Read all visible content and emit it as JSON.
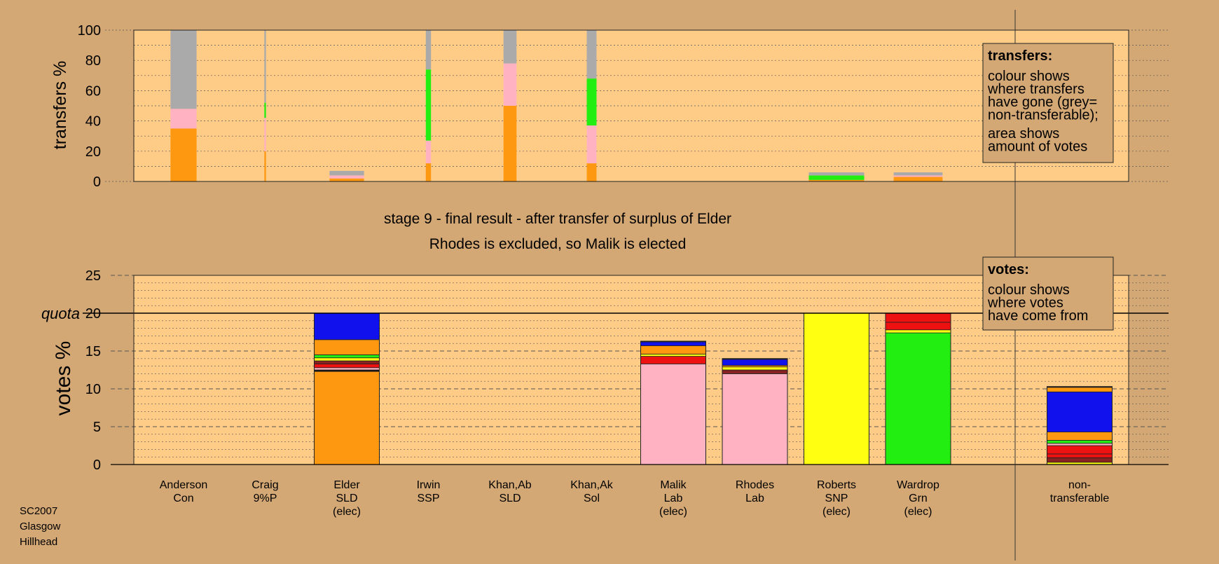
{
  "chart_data": [
    {
      "type": "bar",
      "ylabel": "transfers %",
      "ylim": [
        0,
        100
      ],
      "yticks": [
        0,
        20,
        40,
        60,
        80,
        100
      ],
      "grid": true,
      "note": {
        "title": "transfers:",
        "lines": [
          "colour shows",
          "where transfers",
          "have gone (grey=",
          "non-transferable);",
          "area shows",
          "amount of votes"
        ]
      },
      "bars": [
        {
          "index": 0,
          "width": 0.4,
          "segments": [
            {
              "value": 35,
              "color": "#ff9811"
            },
            {
              "value": 13,
              "color": "#ffb2c2"
            },
            {
              "value": 52,
              "color": "#aaaaaa"
            }
          ]
        },
        {
          "index": 1,
          "width": 0.025,
          "segments": [
            {
              "value": 20,
              "color": "#ff9811"
            },
            {
              "value": 22,
              "color": "#ffb2c2"
            },
            {
              "value": 10,
              "color": "#22ee11"
            },
            {
              "value": 48,
              "color": "#aaaaaa"
            }
          ]
        },
        {
          "index": 2,
          "width": 0.53,
          "segments": [
            {
              "value": 2,
              "color": "#ff9811"
            },
            {
              "value": 2,
              "color": "#ffb2c2"
            },
            {
              "value": 3,
              "color": "#aaaaaa"
            }
          ]
        },
        {
          "index": 3,
          "width": 0.08,
          "segments": [
            {
              "value": 12,
              "color": "#ff9811"
            },
            {
              "value": 15,
              "color": "#ffb2c2"
            },
            {
              "value": 47,
              "color": "#22ee11"
            },
            {
              "value": 26,
              "color": "#aaaaaa"
            }
          ]
        },
        {
          "index": 4,
          "width": 0.2,
          "segments": [
            {
              "value": 50,
              "color": "#ff9811"
            },
            {
              "value": 28,
              "color": "#ffb2c2"
            },
            {
              "value": 22,
              "color": "#aaaaaa"
            }
          ]
        },
        {
          "index": 5,
          "width": 0.15,
          "segments": [
            {
              "value": 12,
              "color": "#ff9811"
            },
            {
              "value": 25,
              "color": "#ffb2c2"
            },
            {
              "value": 31,
              "color": "#22ee11"
            },
            {
              "value": 32,
              "color": "#aaaaaa"
            }
          ]
        },
        {
          "index": 8,
          "width": 0.85,
          "segments": [
            {
              "value": 1,
              "color": "#ff9811"
            },
            {
              "value": 3,
              "color": "#22ee11"
            },
            {
              "value": 2,
              "color": "#aaaaaa"
            }
          ]
        },
        {
          "index": 9,
          "width": 0.75,
          "segments": [
            {
              "value": 3,
              "color": "#ff9811"
            },
            {
              "value": 1,
              "color": "#ffb2c2"
            },
            {
              "value": 2,
              "color": "#aaaaaa"
            }
          ]
        }
      ]
    },
    {
      "type": "bar",
      "title": "stage 9 - final result - after transfer of surplus of Elder",
      "subtitle": "Rhodes is excluded, so Malik is elected",
      "ylabel": "votes %",
      "ylim": [
        0,
        25
      ],
      "yticks": [
        0,
        5,
        10,
        15,
        20,
        25
      ],
      "quota": {
        "value": 20,
        "label": "quota"
      },
      "grid": true,
      "note": {
        "title": "votes:",
        "lines": [
          "colour shows",
          "where votes",
          "have come from"
        ]
      },
      "categories": [
        [
          "Anderson",
          "Con"
        ],
        [
          "Craig",
          "9%P"
        ],
        [
          "Elder",
          "SLD",
          "(elec)"
        ],
        [
          "Irwin",
          "SSP"
        ],
        [
          "Khan,Ab",
          "SLD"
        ],
        [
          "Khan,Ak",
          "Sol"
        ],
        [
          "Malik",
          "Lab",
          "(elec)"
        ],
        [
          "Rhodes",
          "Lab"
        ],
        [
          "Roberts",
          "SNP",
          "(elec)"
        ],
        [
          "Wardrop",
          "Grn",
          "(elec)"
        ],
        [
          "non-",
          "transferable"
        ]
      ],
      "bars": [
        {
          "index": 2,
          "segments": [
            {
              "value": 12.3,
              "color": "#ff9811"
            },
            {
              "value": 0.2,
              "color": "#111111"
            },
            {
              "value": 0.3,
              "color": "#ffb2c2"
            },
            {
              "value": 0.5,
              "color": "#ee1111"
            },
            {
              "value": 0.4,
              "color": "#882222"
            },
            {
              "value": 0.4,
              "color": "#ffff11"
            },
            {
              "value": 0.4,
              "color": "#22ee11"
            },
            {
              "value": 2.0,
              "color": "#ff9811"
            },
            {
              "value": 3.5,
              "color": "#1111ee"
            }
          ]
        },
        {
          "index": 6,
          "segments": [
            {
              "value": 13.3,
              "color": "#ffb2c2"
            },
            {
              "value": 1.0,
              "color": "#ee1111"
            },
            {
              "value": 0.3,
              "color": "#ffff11"
            },
            {
              "value": 1.1,
              "color": "#ff9811"
            },
            {
              "value": 0.5,
              "color": "#1111ee"
            },
            {
              "value": 0.1,
              "color": "#111111"
            }
          ]
        },
        {
          "index": 7,
          "segments": [
            {
              "value": 12.0,
              "color": "#ffb2c2"
            },
            {
              "value": 0.5,
              "color": "#882222"
            },
            {
              "value": 0.4,
              "color": "#ffff11"
            },
            {
              "value": 0.2,
              "color": "#ff9811"
            },
            {
              "value": 0.8,
              "color": "#1111ee"
            },
            {
              "value": 0.1,
              "color": "#111111"
            }
          ]
        },
        {
          "index": 8,
          "segments": [
            {
              "value": 20,
              "color": "#ffff11"
            }
          ]
        },
        {
          "index": 9,
          "segments": [
            {
              "value": 17.4,
              "color": "#22ee11"
            },
            {
              "value": 0.4,
              "color": "#ffff11"
            },
            {
              "value": 1.0,
              "color": "#ee1111"
            },
            {
              "value": 1.2,
              "color": "#ee1111"
            }
          ]
        },
        {
          "index": 10,
          "segments": [
            {
              "value": 0.3,
              "color": "#ffff11"
            },
            {
              "value": 0.6,
              "color": "#882222"
            },
            {
              "value": 0.5,
              "color": "#ee1111"
            },
            {
              "value": 1.1,
              "color": "#ee1111"
            },
            {
              "value": 0.3,
              "color": "#ffb2c2"
            },
            {
              "value": 0.4,
              "color": "#22ee11"
            },
            {
              "value": 1.1,
              "color": "#ff9811"
            },
            {
              "value": 5.3,
              "color": "#1111ee"
            },
            {
              "value": 0.6,
              "color": "#ff9811"
            },
            {
              "value": 0.1,
              "color": "#111111"
            }
          ]
        }
      ]
    }
  ],
  "footer": [
    "SC2007",
    "Glasgow",
    "Hillhead"
  ],
  "colors": {
    "page": "#d4a874",
    "plot": "#ffcc88",
    "orange": "#ff9811",
    "pink": "#ffb2c2",
    "green": "#22ee11",
    "grey": "#aaaaaa",
    "blue": "#1111ee",
    "red": "#ee1111",
    "yellow": "#ffff11",
    "maroon": "#882222"
  }
}
